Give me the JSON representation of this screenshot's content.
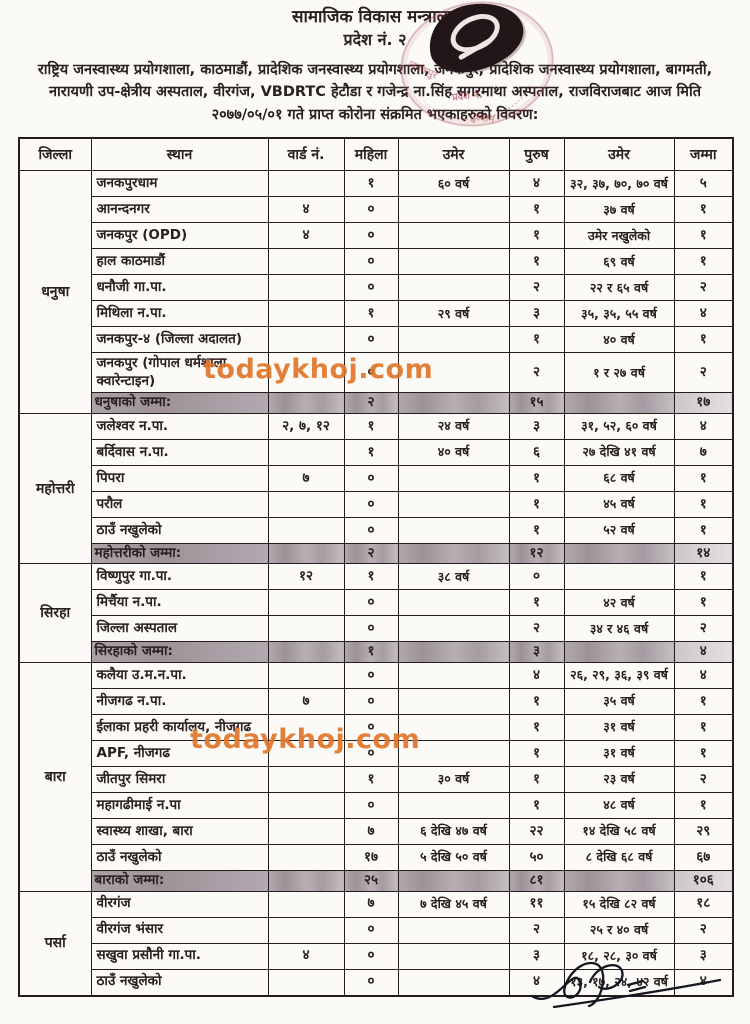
{
  "header": {
    "ministry": "सामाजिक विकास मन्त्रालय",
    "province": "प्रदेश नं. २"
  },
  "intro": {
    "line1": "राष्ट्रिय जनस्वास्थ्य प्रयोगशाला, काठमाडौं, प्रादेशिक जनस्वास्थ्य प्रयोगशाला, जनकपुर, प्रादेशिक जनस्वास्थ्य प्रयोगशाला, बागमती,",
    "line2": "नारायणी उप-क्षेत्रीय अस्पताल, वीरगंज, VBDRTC हेटौडा र गजेन्द्र ना.सिंह सगरमाथा अस्पताल, राजविराजबाट आज मिति",
    "line3": "२०७७/०५/०१ गते प्राप्त कोरोना संक्रमित भएकाहरुको विवरण:"
  },
  "watermark": {
    "text": "todaykhoj.com",
    "color": "#e0762a"
  },
  "stamp": {
    "fragments": [
      "प्रदेश नं.",
      "जनकपुर",
      "पुरधाम"
    ]
  },
  "highlight_color": "#a49ba1",
  "table": {
    "columns": [
      "जिल्ला",
      "स्थान",
      "वार्ड नं.",
      "महिला",
      "उमेर",
      "पुरुष",
      "उमेर",
      "जम्मा"
    ],
    "sections": [
      {
        "district": "धनुषा",
        "rows": [
          [
            "जनकपुरधाम",
            "",
            "१",
            "६० वर्ष",
            "४",
            "३२, ३७, ७०, ७० वर्ष",
            "५"
          ],
          [
            "आनन्दनगर",
            "४",
            "०",
            "",
            "१",
            "३७ वर्ष",
            "१"
          ],
          [
            "जनकपुर (OPD)",
            "४",
            "०",
            "",
            "१",
            "उमेर नखुलेको",
            "१"
          ],
          [
            "हाल काठमाडौं",
            "",
            "०",
            "",
            "१",
            "६९ वर्ष",
            "१"
          ],
          [
            "धनौजी गा.पा.",
            "",
            "०",
            "",
            "२",
            "२२ र ६५ वर्ष",
            "२"
          ],
          [
            "मिथिला न.पा.",
            "",
            "१",
            "२९ वर्ष",
            "३",
            "३५, ३५, ५५ वर्ष",
            "४"
          ],
          [
            "जनकपुर-४ (जिल्ला अदालत)",
            "",
            "०",
            "",
            "१",
            "४० वर्ष",
            "१"
          ],
          [
            "जनकपुर (गोपाल धर्मशाला क्वारेन्टाइन)",
            "",
            "०",
            "",
            "२",
            "१ र २७ वर्ष",
            "२"
          ]
        ],
        "total": {
          "label": "धनुषाको जम्मा:",
          "female": "२",
          "male": "१५",
          "sum": "१७"
        }
      },
      {
        "district": "महोत्तरी",
        "rows": [
          [
            "जलेश्वर न.पा.",
            "२, ७, १२",
            "१",
            "२४ वर्ष",
            "३",
            "३१, ५२, ६० वर्ष",
            "४"
          ],
          [
            "बर्दिवास न.पा.",
            "",
            "१",
            "४० वर्ष",
            "६",
            "२७ देखि ४१ वर्ष",
            "७"
          ],
          [
            "पिपरा",
            "७",
            "०",
            "",
            "१",
            "६८ वर्ष",
            "१"
          ],
          [
            "परौल",
            "",
            "०",
            "",
            "१",
            "४५ वर्ष",
            "१"
          ],
          [
            "ठाउँ नखुलेको",
            "",
            "०",
            "",
            "१",
            "५२ वर्ष",
            "१"
          ]
        ],
        "total": {
          "label": "महोत्तरीको जम्मा:",
          "female": "२",
          "male": "१२",
          "sum": "१४"
        }
      },
      {
        "district": "सिरहा",
        "rows": [
          [
            "विष्णुपुर गा.पा.",
            "१२",
            "१",
            "३८ वर्ष",
            "०",
            "",
            "१"
          ],
          [
            "मिर्चैया न.पा.",
            "",
            "०",
            "",
            "१",
            "४२ वर्ष",
            "१"
          ],
          [
            "जिल्ला अस्पताल",
            "",
            "०",
            "",
            "२",
            "३४ र ४६ वर्ष",
            "२"
          ]
        ],
        "total": {
          "label": "सिरहाको जम्मा:",
          "female": "१",
          "male": "३",
          "sum": "४"
        }
      },
      {
        "district": "बारा",
        "rows": [
          [
            "कलैया उ.म.न.पा.",
            "",
            "०",
            "",
            "४",
            "२६, २९, ३६, ३९ वर्ष",
            "४"
          ],
          [
            "नीजगढ न.पा.",
            "७",
            "०",
            "",
            "१",
            "३५ वर्ष",
            "१"
          ],
          [
            "ईलाका प्रहरी कार्यालय, नीजगढ",
            "",
            "०",
            "",
            "१",
            "३१ वर्ष",
            "१"
          ],
          [
            "APF, नीजगढ",
            "",
            "०",
            "",
            "१",
            "३१ वर्ष",
            "१"
          ],
          [
            "जीतपुर सिमरा",
            "",
            "१",
            "३० वर्ष",
            "१",
            "२३ वर्ष",
            "२"
          ],
          [
            "महागढीमाई न.पा",
            "",
            "०",
            "",
            "१",
            "४८ वर्ष",
            "१"
          ],
          [
            "स्वास्थ्य शाखा, बारा",
            "",
            "७",
            "६ देखि ४७ वर्ष",
            "२२",
            "१४ देखि ५८ वर्ष",
            "२९"
          ],
          [
            "ठाउँ नखुलेको",
            "",
            "१७",
            "५ देखि ५० वर्ष",
            "५०",
            "८ देखि ६८ वर्ष",
            "६७"
          ]
        ],
        "total": {
          "label": "बाराको जम्मा:",
          "female": "२५",
          "male": "८१",
          "sum": "१०६"
        }
      },
      {
        "district": "पर्सा",
        "rows": [
          [
            "वीरगंज",
            "",
            "७",
            "७ देखि ४५ वर्ष",
            "११",
            "१५ देखि ८२ वर्ष",
            "१८"
          ],
          [
            "वीरगंज भंसार",
            "",
            "०",
            "",
            "२",
            "२५ र ४० वर्ष",
            "२"
          ],
          [
            "सखुवा प्रसौनी गा.पा.",
            "४",
            "०",
            "",
            "३",
            "१८, २८, ३० वर्ष",
            "३"
          ],
          [
            "ठाउँ नखुलेको",
            "",
            "०",
            "",
            "४",
            "१३, १७, २४, ४२ वर्ष",
            "४"
          ]
        ],
        "total": null
      }
    ]
  }
}
